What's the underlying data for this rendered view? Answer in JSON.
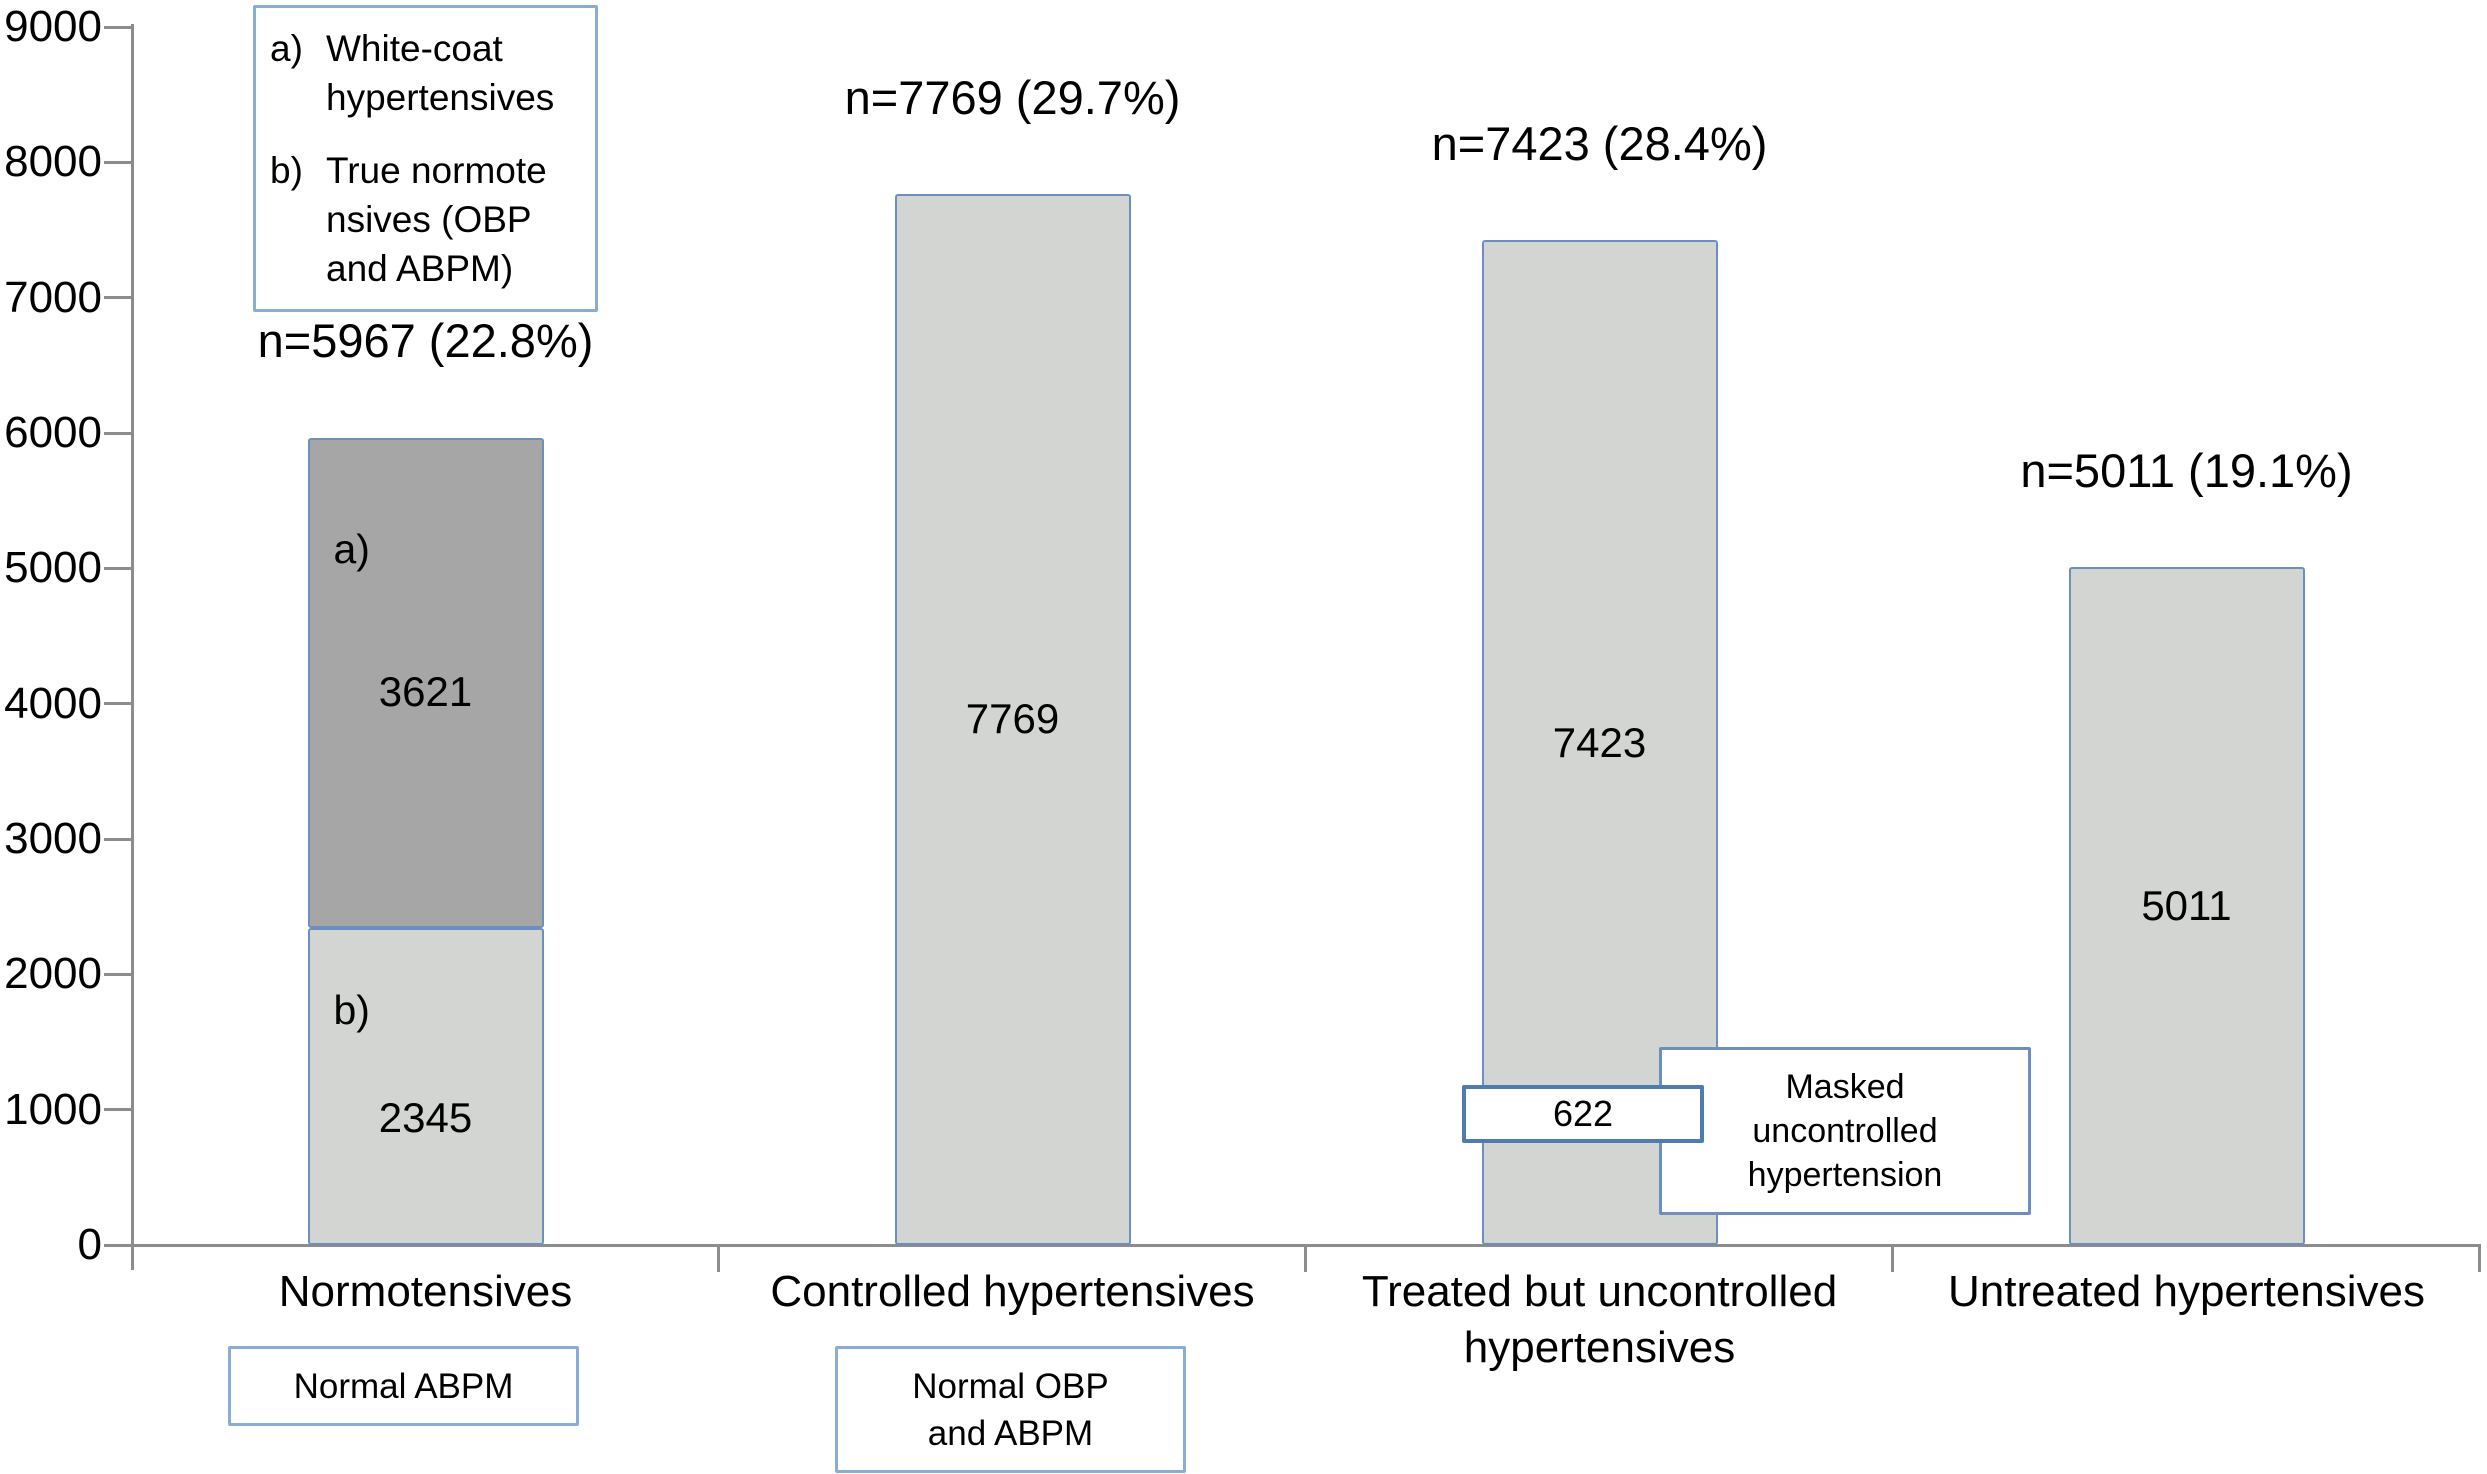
{
  "chart_data": {
    "type": "bar",
    "stacked": true,
    "title": "",
    "xlabel": "",
    "ylabel": "",
    "ylim": [
      0,
      9000
    ],
    "ytick_interval": 1000,
    "grid": false,
    "legend_position": "top-left",
    "categories": [
      "Normotensives",
      "Controlled hypertensives",
      "Treated but uncontrolled hypertensives",
      "Untreated hypertensives"
    ],
    "bars": [
      {
        "category": "Normotensives",
        "annotation": "n=5967 (22.8%)",
        "total": 5967,
        "segments": [
          {
            "marker": "b)",
            "value": 2345,
            "color": "light_gray"
          },
          {
            "marker": "a)",
            "value": 3621,
            "color": "dark_gray"
          }
        ]
      },
      {
        "category": "Controlled hypertensives",
        "annotation": "n=7769 (29.7%)",
        "total": 7769,
        "segments": [
          {
            "marker": "",
            "value": 7769,
            "color": "light_gray"
          }
        ]
      },
      {
        "category": "Treated but uncontrolled hypertensives",
        "annotation": "n=7423 (28.4%)",
        "total": 7423,
        "segments": [
          {
            "marker": "",
            "value": 7423,
            "color": "light_gray"
          }
        ]
      },
      {
        "category": "Untreated hypertensives",
        "annotation": "n=5011 (19.1%)",
        "total": 5011,
        "segments": [
          {
            "marker": "",
            "value": 5011,
            "color": "light_gray"
          }
        ]
      }
    ],
    "legend": {
      "items": [
        {
          "marker": "a)",
          "lines": [
            "White-coat",
            "hypertensives"
          ]
        },
        {
          "marker": "b)",
          "lines": [
            "True normote",
            "nsives (OBP",
            "and ABPM)"
          ]
        }
      ]
    },
    "callouts": {
      "masked_value": "622",
      "masked_label": "Masked\nuncontrolled\nhypertension"
    },
    "footnotes": [
      {
        "under": "Normotensives",
        "text": "Normal ABPM"
      },
      {
        "under": "Controlled hypertensives",
        "text": "Normal OBP\nand ABPM"
      }
    ],
    "colors": {
      "light_gray": "#d3d5d2",
      "dark_gray": "#a6a6a6",
      "bar_border": "#6b90bd",
      "box_border": "#8aadd6",
      "axis": "#8c8c8c",
      "text": "#000000",
      "background": "#ffffff"
    }
  }
}
